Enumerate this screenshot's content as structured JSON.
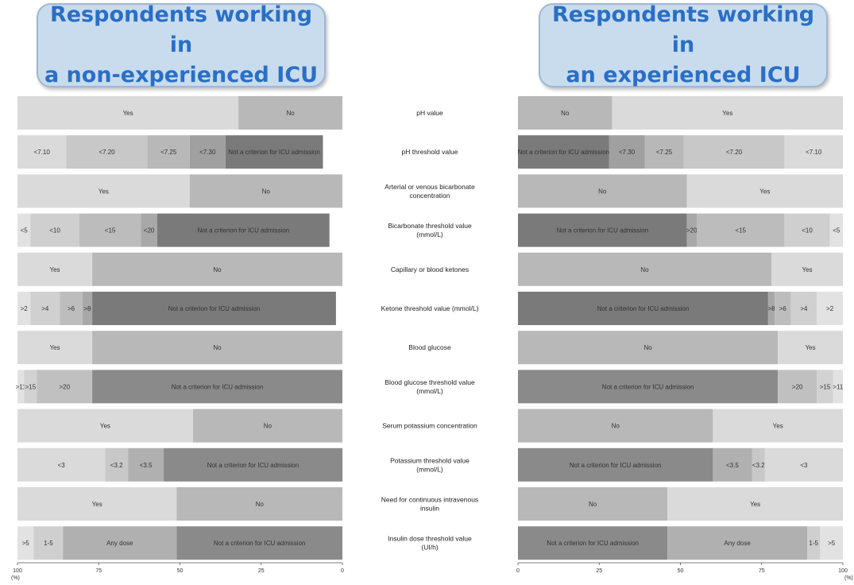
{
  "headers": {
    "left": [
      "Respondents working in",
      "a non-experienced ICU"
    ],
    "right": [
      "Respondents working in",
      "an experienced ICU"
    ]
  },
  "chart_data": [
    {
      "type": "bar",
      "orientation": "horizontal-stacked",
      "panel": "left",
      "title": "Respondents working in a non-experienced ICU",
      "xlim": [
        100,
        0
      ],
      "xticks": [
        "100",
        "75",
        "50",
        "25",
        "0"
      ],
      "unit_label": "(%)",
      "rows": [
        {
          "label": "pH value",
          "segments": [
            {
              "label": "Yes",
              "value": 68,
              "color": "#dadada"
            },
            {
              "label": "No",
              "value": 32,
              "color": "#b8b8b8"
            }
          ]
        },
        {
          "label": "pH threshold value",
          "segments": [
            {
              "label": "<7.10",
              "value": 15,
              "color": "#dadada"
            },
            {
              "label": "<7.20",
              "value": 25,
              "color": "#c8c8c8"
            },
            {
              "label": "<7.25",
              "value": 13,
              "color": "#b8b8b8"
            },
            {
              "label": "<7.30",
              "value": 11,
              "color": "#a0a0a0"
            },
            {
              "label": "Not a criterion for ICU admission",
              "value": 30,
              "color": "#7a7a7a"
            }
          ]
        },
        {
          "label": "Arterial or venous bicarbonate concentration",
          "segments": [
            {
              "label": "Yes",
              "value": 53,
              "color": "#dadada"
            },
            {
              "label": "No",
              "value": 47,
              "color": "#b8b8b8"
            }
          ]
        },
        {
          "label": "Bicarbonate threshold value (mmol/L)",
          "segments": [
            {
              "label": "<5",
              "value": 4,
              "color": "#e2e2e2"
            },
            {
              "label": "<10",
              "value": 15,
              "color": "#cfcfcf"
            },
            {
              "label": "<15",
              "value": 19,
              "color": "#bcbcbc"
            },
            {
              "label": "<20",
              "value": 5,
              "color": "#a8a8a8"
            },
            {
              "label": "Not a criterion for ICU admission",
              "value": 53,
              "color": "#7a7a7a"
            }
          ]
        },
        {
          "label": "Capillary or blood ketones",
          "segments": [
            {
              "label": "Yes",
              "value": 23,
              "color": "#dadada"
            },
            {
              "label": "No",
              "value": 77,
              "color": "#b8b8b8"
            }
          ]
        },
        {
          "label": "Ketone threshold value (mmol/L)",
          "segments": [
            {
              "label": ">2",
              "value": 4,
              "color": "#e2e2e2"
            },
            {
              "label": ">4",
              "value": 9,
              "color": "#d0d0d0"
            },
            {
              "label": ">6",
              "value": 7,
              "color": "#bdbdbd"
            },
            {
              "label": ">8",
              "value": 3,
              "color": "#a8a8a8"
            },
            {
              "label": "Not a criterion for ICU admission",
              "value": 75,
              "color": "#7a7a7a"
            }
          ]
        },
        {
          "label": "Blood glucose",
          "segments": [
            {
              "label": "Yes",
              "value": 23,
              "color": "#dadada"
            },
            {
              "label": "No",
              "value": 77,
              "color": "#b8b8b8"
            }
          ]
        },
        {
          "label": "Blood glucose threshold value (mmol/L)",
          "segments": [
            {
              "label": ">11",
              "value": 2,
              "color": "#e2e2e2"
            },
            {
              "label": ">15",
              "value": 4,
              "color": "#d2d2d2"
            },
            {
              "label": ">20",
              "value": 17,
              "color": "#c0c0c0"
            },
            {
              "label": "Not a criterion for ICU admission",
              "value": 77,
              "color": "#8a8a8a"
            }
          ]
        },
        {
          "label": "Serum potassium concentration",
          "segments": [
            {
              "label": "Yes",
              "value": 54,
              "color": "#dadada"
            },
            {
              "label": "No",
              "value": 46,
              "color": "#b8b8b8"
            }
          ]
        },
        {
          "label": "Potassium threshold value (mmol/L)",
          "segments": [
            {
              "label": "<3",
              "value": 27,
              "color": "#dadada"
            },
            {
              "label": "<3.2",
              "value": 7,
              "color": "#c8c8c8"
            },
            {
              "label": "<3.5",
              "value": 11,
              "color": "#b0b0b0"
            },
            {
              "label": "Not a criterion for ICU admission",
              "value": 55,
              "color": "#8a8a8a"
            }
          ]
        },
        {
          "label": "Need for continuous intravenous insulin",
          "segments": [
            {
              "label": "Yes",
              "value": 49,
              "color": "#dadada"
            },
            {
              "label": "No",
              "value": 51,
              "color": "#b8b8b8"
            }
          ]
        },
        {
          "label": "Insulin dose threshold value (UI/h)",
          "segments": [
            {
              "label": ">5",
              "value": 5,
              "color": "#e2e2e2"
            },
            {
              "label": "1-5",
              "value": 9,
              "color": "#cfcfcf"
            },
            {
              "label": "Any dose",
              "value": 35,
              "color": "#b0b0b0"
            },
            {
              "label": "Not a criterion for ICU admission",
              "value": 51,
              "color": "#8a8a8a"
            }
          ]
        }
      ]
    },
    {
      "type": "bar",
      "orientation": "horizontal-stacked",
      "panel": "right",
      "title": "Respondents working in an experienced ICU",
      "xlim": [
        0,
        100
      ],
      "xticks": [
        "0",
        "25",
        "50",
        "75",
        "100"
      ],
      "unit_label": "(%)",
      "rows": [
        {
          "label": "pH value",
          "segments": [
            {
              "label": "No",
              "value": 29,
              "color": "#b8b8b8"
            },
            {
              "label": "Yes",
              "value": 71,
              "color": "#dadada"
            }
          ]
        },
        {
          "label": "pH threshold value",
          "segments": [
            {
              "label": "Not a criterion for ICU admission",
              "value": 28,
              "color": "#7a7a7a"
            },
            {
              "label": "<7.30",
              "value": 11,
              "color": "#a0a0a0"
            },
            {
              "label": "<7.25",
              "value": 12,
              "color": "#b8b8b8"
            },
            {
              "label": "<7.20",
              "value": 31,
              "color": "#c8c8c8"
            },
            {
              "label": "<7.10",
              "value": 18,
              "color": "#dadada"
            }
          ]
        },
        {
          "label": "Arterial or venous bicarbonate concentration",
          "segments": [
            {
              "label": "No",
              "value": 52,
              "color": "#b8b8b8"
            },
            {
              "label": "Yes",
              "value": 48,
              "color": "#dadada"
            }
          ]
        },
        {
          "label": "Bicarbonate threshold value (mmol/L)",
          "segments": [
            {
              "label": "Not a criterion for ICU admission",
              "value": 52,
              "color": "#7a7a7a"
            },
            {
              "label": ">20",
              "value": 3,
              "color": "#a8a8a8"
            },
            {
              "label": "<15",
              "value": 27,
              "color": "#bcbcbc"
            },
            {
              "label": "<10",
              "value": 14,
              "color": "#cfcfcf"
            },
            {
              "label": "<5",
              "value": 4,
              "color": "#e2e2e2"
            }
          ]
        },
        {
          "label": "Capillary or blood ketones",
          "segments": [
            {
              "label": "No",
              "value": 78,
              "color": "#b8b8b8"
            },
            {
              "label": "Yes",
              "value": 22,
              "color": "#dadada"
            }
          ]
        },
        {
          "label": "Ketone threshold value (mmol/L)",
          "segments": [
            {
              "label": "Not a criterion for ICU admission",
              "value": 77,
              "color": "#7a7a7a"
            },
            {
              "label": ">8",
              "value": 2,
              "color": "#a8a8a8"
            },
            {
              "label": ">6",
              "value": 5,
              "color": "#bdbdbd"
            },
            {
              "label": ">4",
              "value": 8,
              "color": "#d0d0d0"
            },
            {
              "label": ">2",
              "value": 8,
              "color": "#e2e2e2"
            }
          ]
        },
        {
          "label": "Blood glucose",
          "segments": [
            {
              "label": "No",
              "value": 80,
              "color": "#b8b8b8"
            },
            {
              "label": "Yes",
              "value": 20,
              "color": "#dadada"
            }
          ]
        },
        {
          "label": "Blood glucose threshold value (mmol/L)",
          "segments": [
            {
              "label": "Not a criterion for ICU admission",
              "value": 80,
              "color": "#8a8a8a"
            },
            {
              "label": ">20",
              "value": 12,
              "color": "#c0c0c0"
            },
            {
              "label": ">15",
              "value": 5,
              "color": "#d2d2d2"
            },
            {
              "label": ">11",
              "value": 3,
              "color": "#e2e2e2"
            }
          ]
        },
        {
          "label": "Serum potassium concentration",
          "segments": [
            {
              "label": "No",
              "value": 60,
              "color": "#b8b8b8"
            },
            {
              "label": "Yes",
              "value": 40,
              "color": "#dadada"
            }
          ]
        },
        {
          "label": "Potassium threshold value (mmol/L)",
          "segments": [
            {
              "label": "Not a criterion for ICU admission",
              "value": 60,
              "color": "#8a8a8a"
            },
            {
              "label": "<3.5",
              "value": 12,
              "color": "#b0b0b0"
            },
            {
              "label": "<3.2",
              "value": 4,
              "color": "#c8c8c8"
            },
            {
              "label": "<3",
              "value": 24,
              "color": "#dadada"
            }
          ]
        },
        {
          "label": "Need for continuous intravenous insulin",
          "segments": [
            {
              "label": "No",
              "value": 46,
              "color": "#b8b8b8"
            },
            {
              "label": "Yes",
              "value": 54,
              "color": "#dadada"
            }
          ]
        },
        {
          "label": "Insulin dose threshold value (UI/h)",
          "segments": [
            {
              "label": "Not a criterion for ICU admission",
              "value": 46,
              "color": "#8a8a8a"
            },
            {
              "label": "Any dose",
              "value": 43,
              "color": "#b0b0b0"
            },
            {
              "label": "1-5",
              "value": 4,
              "color": "#cfcfcf"
            },
            {
              "label": ">5",
              "value": 7,
              "color": "#e2e2e2"
            }
          ]
        }
      ]
    }
  ]
}
